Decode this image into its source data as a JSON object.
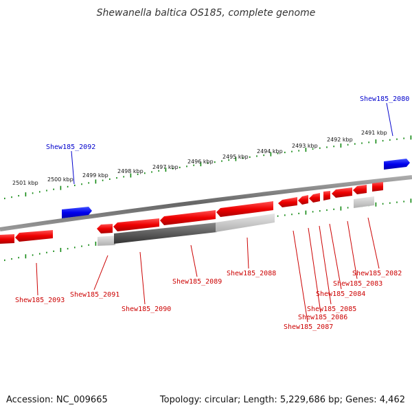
{
  "title": "Shewanella baltica OS185, complete genome",
  "footer": {
    "accession": "Accession: NC_009665",
    "topology": "Topology: circular; Length: 5,229,686 bp; Genes: 4,462"
  },
  "colors": {
    "forward_gene": "#dd0000",
    "highlight": "#0000dd",
    "ticks": "#118811",
    "backbone": "#777777",
    "label_red": "#cc0000",
    "label_blue": "#0000cc"
  },
  "tick_labels": [
    {
      "kbp": 2501,
      "label": "2501 kbp"
    },
    {
      "kbp": 2500,
      "label": "2500 kbp"
    },
    {
      "kbp": 2499,
      "label": "2499 kbp"
    },
    {
      "kbp": 2498,
      "label": "2498 kbp"
    },
    {
      "kbp": 2497,
      "label": "2497 kbp"
    },
    {
      "kbp": 2496,
      "label": "2496 kbp"
    },
    {
      "kbp": 2495,
      "label": "2495 kbp"
    },
    {
      "kbp": 2494,
      "label": "2494 kbp"
    },
    {
      "kbp": 2493,
      "label": "2493 kbp"
    },
    {
      "kbp": 2492,
      "label": "2492 kbp"
    },
    {
      "kbp": 2491,
      "label": "2491 kbp"
    }
  ],
  "genes": [
    {
      "id": "Shew185_2093",
      "label": "Shew185_2093"
    },
    {
      "id": "Shew185_2091",
      "label": "Shew185_2091"
    },
    {
      "id": "Shew185_2090",
      "label": "Shew185_2090"
    },
    {
      "id": "Shew185_2089",
      "label": "Shew185_2089"
    },
    {
      "id": "Shew185_2088",
      "label": "Shew185_2088"
    },
    {
      "id": "Shew185_2087",
      "label": "Shew185_2087"
    },
    {
      "id": "Shew185_2086",
      "label": "Shew185_2086"
    },
    {
      "id": "Shew185_2085",
      "label": "Shew185_2085"
    },
    {
      "id": "Shew185_2084",
      "label": "Shew185_2084"
    },
    {
      "id": "Shew185_2083",
      "label": "Shew185_2083"
    },
    {
      "id": "Shew185_2082",
      "label": "Shew185_2082"
    },
    {
      "id": "Shew185_2092",
      "label": "Shew185_2092"
    },
    {
      "id": "Shew185_2080",
      "label": "Shew185_2080"
    }
  ]
}
